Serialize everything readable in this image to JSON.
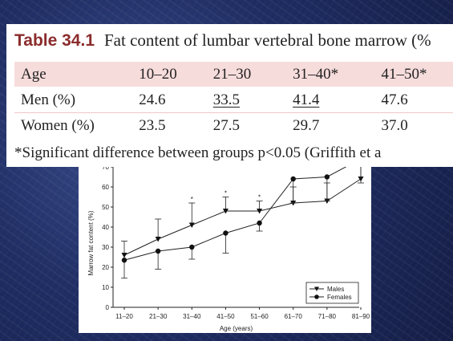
{
  "table": {
    "number": "Table 34.1",
    "caption": "Fat content of lumbar vertebral bone marrow (%",
    "headers": [
      "Age",
      "10–20",
      "21–30",
      "31–40*",
      "41–50*"
    ],
    "rows": [
      {
        "label": "Men (%)",
        "cells": [
          "24.6",
          "33.5",
          "41.4",
          "47.6"
        ]
      },
      {
        "label": "Women (%)",
        "cells": [
          "23.5",
          "27.5",
          "29.7",
          "37.0"
        ]
      }
    ],
    "footnote": "*Significant difference between groups p<0.05 (Griffith et a"
  },
  "chart_data": {
    "type": "line",
    "xlabel": "Age (years)",
    "ylabel": "Marrow fat content (%)",
    "categories": [
      "11–20",
      "21–30",
      "31–40",
      "41–50",
      "51–60",
      "61–70",
      "71–80",
      "81–90"
    ],
    "ylim": [
      0,
      72
    ],
    "yticks": [
      0,
      10,
      20,
      30,
      40,
      50,
      60,
      70
    ],
    "significance_marker": "*",
    "significant_categories": [
      "31–40",
      "41–50",
      "51–60"
    ],
    "legend_position": "bottom-right",
    "series": [
      {
        "name": "Males",
        "marker": "triangle-down",
        "values": [
          26,
          34,
          41,
          48,
          48,
          52,
          53,
          64
        ],
        "error": [
          7,
          10,
          11,
          7,
          5,
          8,
          9,
          11
        ]
      },
      {
        "name": "Females",
        "marker": "circle",
        "values": [
          23.5,
          28,
          30,
          37,
          42,
          64,
          65,
          74
        ],
        "error": [
          9,
          9,
          6,
          10,
          4,
          12,
          12,
          12
        ]
      }
    ]
  }
}
